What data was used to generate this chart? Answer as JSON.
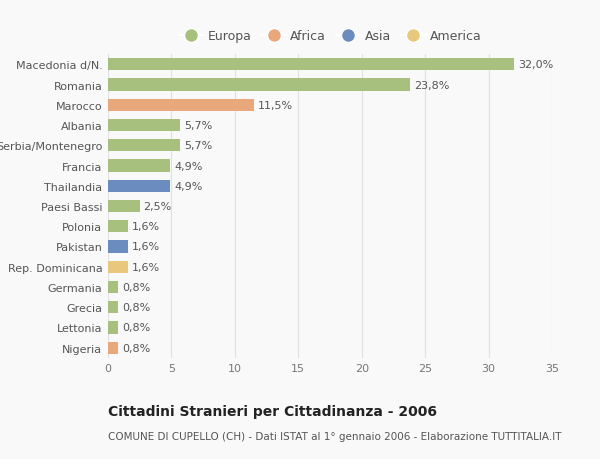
{
  "categories": [
    "Macedonia d/N.",
    "Romania",
    "Marocco",
    "Albania",
    "Serbia/Montenegro",
    "Francia",
    "Thailandia",
    "Paesi Bassi",
    "Polonia",
    "Pakistan",
    "Rep. Dominicana",
    "Germania",
    "Grecia",
    "Lettonia",
    "Nigeria"
  ],
  "values": [
    32.0,
    23.8,
    11.5,
    5.7,
    5.7,
    4.9,
    4.9,
    2.5,
    1.6,
    1.6,
    1.6,
    0.8,
    0.8,
    0.8,
    0.8
  ],
  "labels": [
    "32,0%",
    "23,8%",
    "11,5%",
    "5,7%",
    "5,7%",
    "4,9%",
    "4,9%",
    "2,5%",
    "1,6%",
    "1,6%",
    "1,6%",
    "0,8%",
    "0,8%",
    "0,8%",
    "0,8%"
  ],
  "continents": [
    "Europa",
    "Europa",
    "Africa",
    "Europa",
    "Europa",
    "Europa",
    "Asia",
    "Europa",
    "Europa",
    "Asia",
    "America",
    "Europa",
    "Europa",
    "Europa",
    "Africa"
  ],
  "colors": {
    "Europa": "#a8c07e",
    "Africa": "#e8a87c",
    "Asia": "#6b8cbf",
    "America": "#e8c87c"
  },
  "legend_order": [
    "Europa",
    "Africa",
    "Asia",
    "America"
  ],
  "xlim": [
    0,
    35
  ],
  "xticks": [
    0,
    5,
    10,
    15,
    20,
    25,
    30,
    35
  ],
  "title": "Cittadini Stranieri per Cittadinanza - 2006",
  "subtitle": "COMUNE DI CUPELLO (CH) - Dati ISTAT al 1° gennaio 2006 - Elaborazione TUTTITALIA.IT",
  "background_color": "#f9f9f9",
  "grid_color": "#e0e0e0",
  "bar_height": 0.6,
  "label_fontsize": 8,
  "tick_fontsize": 8,
  "title_fontsize": 10,
  "subtitle_fontsize": 7.5
}
